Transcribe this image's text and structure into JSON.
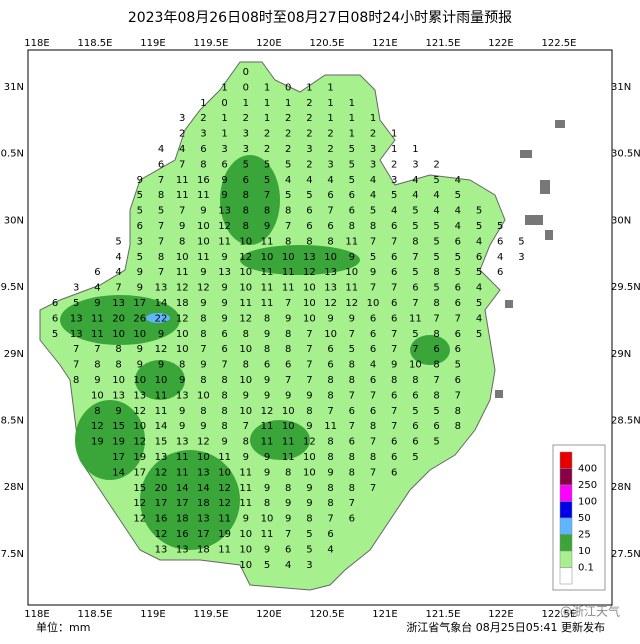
{
  "title": "2023年08月26日08时至08月27日08时24小时累计雨量预报",
  "lon_labels": [
    "118E",
    "118.5E",
    "119E",
    "119.5E",
    "120E",
    "120.5E",
    "121E",
    "121.5E",
    "122E",
    "122.5E"
  ],
  "lat_labels": [
    "31N",
    "30.5N",
    "30N",
    "29.5N",
    "29N",
    "28.5N",
    "28N",
    "27.5N"
  ],
  "grid": [
    [
      null,
      null,
      null,
      null,
      null,
      null,
      null,
      null,
      null,
      0
    ],
    [
      null,
      null,
      null,
      null,
      null,
      null,
      null,
      null,
      1,
      0,
      1,
      0,
      1,
      1
    ],
    [
      null,
      null,
      null,
      null,
      null,
      null,
      null,
      1,
      0,
      1,
      1,
      1,
      2,
      1,
      1
    ],
    [
      null,
      null,
      null,
      null,
      null,
      null,
      3,
      2,
      1,
      2,
      1,
      2,
      2,
      1,
      1,
      1
    ],
    [
      null,
      null,
      null,
      null,
      null,
      null,
      2,
      3,
      1,
      3,
      2,
      2,
      2,
      2,
      1,
      2,
      1
    ],
    [
      null,
      null,
      null,
      null,
      null,
      4,
      4,
      6,
      3,
      3,
      2,
      2,
      3,
      2,
      5,
      3,
      1,
      1
    ],
    [
      null,
      null,
      null,
      null,
      null,
      6,
      7,
      8,
      6,
      5,
      5,
      5,
      2,
      3,
      5,
      3,
      2,
      3,
      2
    ],
    [
      null,
      null,
      null,
      null,
      9,
      7,
      11,
      16,
      9,
      6,
      5,
      4,
      4,
      4,
      5,
      4,
      3,
      4,
      5,
      4
    ],
    [
      null,
      null,
      null,
      null,
      5,
      8,
      11,
      11,
      9,
      8,
      7,
      5,
      5,
      6,
      6,
      4,
      5,
      4,
      4,
      5
    ],
    [
      null,
      null,
      null,
      null,
      5,
      5,
      7,
      9,
      13,
      8,
      8,
      8,
      6,
      7,
      6,
      5,
      4,
      5,
      4,
      4,
      5
    ],
    [
      null,
      null,
      null,
      null,
      6,
      7,
      9,
      10,
      12,
      8,
      9,
      7,
      6,
      6,
      8,
      8,
      6,
      5,
      5,
      4,
      5,
      5
    ],
    [
      null,
      null,
      null,
      5,
      3,
      7,
      8,
      10,
      11,
      10,
      11,
      8,
      8,
      8,
      11,
      7,
      7,
      8,
      5,
      6,
      4,
      6,
      5
    ],
    [
      null,
      null,
      null,
      4,
      5,
      8,
      10,
      11,
      9,
      12,
      10,
      10,
      13,
      10,
      9,
      5,
      6,
      7,
      5,
      5,
      6,
      4,
      3
    ],
    [
      null,
      null,
      6,
      4,
      9,
      7,
      11,
      9,
      13,
      10,
      11,
      11,
      12,
      13,
      10,
      9,
      6,
      5,
      8,
      5,
      5,
      6
    ],
    [
      null,
      3,
      4,
      7,
      9,
      13,
      12,
      12,
      9,
      10,
      11,
      11,
      10,
      13,
      11,
      7,
      7,
      6,
      5,
      6,
      4
    ],
    [
      6,
      5,
      9,
      13,
      17,
      14,
      18,
      9,
      9,
      11,
      11,
      7,
      10,
      12,
      12,
      10,
      6,
      7,
      8,
      6,
      5
    ],
    [
      6,
      13,
      11,
      20,
      26,
      22,
      12,
      8,
      9,
      12,
      8,
      9,
      10,
      9,
      9,
      6,
      6,
      11,
      7,
      7,
      4
    ],
    [
      5,
      13,
      11,
      10,
      10,
      9,
      10,
      8,
      6,
      8,
      9,
      8,
      7,
      10,
      7,
      6,
      7,
      5,
      8,
      6,
      5
    ],
    [
      null,
      7,
      7,
      8,
      9,
      12,
      10,
      7,
      6,
      10,
      8,
      8,
      7,
      6,
      5,
      6,
      7,
      7,
      6,
      6
    ],
    [
      null,
      7,
      8,
      8,
      9,
      9,
      8,
      9,
      7,
      8,
      6,
      6,
      7,
      6,
      8,
      4,
      9,
      10,
      8,
      5
    ],
    [
      null,
      8,
      9,
      10,
      10,
      10,
      9,
      8,
      8,
      10,
      9,
      7,
      7,
      8,
      8,
      6,
      8,
      8,
      7,
      6
    ],
    [
      null,
      null,
      10,
      13,
      13,
      11,
      13,
      10,
      8,
      9,
      9,
      9,
      9,
      8,
      7,
      7,
      6,
      6,
      8,
      7
    ],
    [
      null,
      null,
      8,
      9,
      12,
      11,
      9,
      8,
      8,
      10,
      12,
      10,
      8,
      7,
      6,
      6,
      7,
      5,
      5,
      8
    ],
    [
      null,
      null,
      12,
      15,
      10,
      14,
      9,
      9,
      8,
      7,
      11,
      10,
      9,
      11,
      7,
      8,
      7,
      6,
      6,
      8
    ],
    [
      null,
      null,
      19,
      19,
      12,
      15,
      13,
      12,
      9,
      8,
      11,
      11,
      12,
      8,
      6,
      7,
      6,
      6,
      5
    ],
    [
      null,
      null,
      null,
      17,
      19,
      13,
      11,
      10,
      11,
      9,
      9,
      11,
      10,
      8,
      8,
      8,
      6,
      5
    ],
    [
      null,
      null,
      null,
      14,
      17,
      12,
      11,
      13,
      10,
      11,
      9,
      8,
      10,
      9,
      8,
      7,
      6
    ],
    [
      null,
      null,
      null,
      null,
      15,
      20,
      14,
      14,
      12,
      11,
      9,
      8,
      9,
      8,
      8,
      7
    ],
    [
      null,
      null,
      null,
      null,
      12,
      17,
      17,
      18,
      12,
      11,
      8,
      9,
      9,
      8,
      7
    ],
    [
      null,
      null,
      null,
      null,
      12,
      16,
      18,
      13,
      11,
      9,
      10,
      9,
      8,
      7,
      6
    ],
    [
      null,
      null,
      null,
      null,
      null,
      12,
      16,
      17,
      19,
      10,
      11,
      7,
      5,
      6
    ],
    [
      null,
      null,
      null,
      null,
      null,
      13,
      13,
      18,
      11,
      10,
      9,
      6,
      5,
      4
    ],
    [
      null,
      null,
      null,
      null,
      null,
      null,
      null,
      null,
      null,
      10,
      5,
      4,
      3
    ]
  ],
  "legend": {
    "labels": [
      "400",
      "250",
      "100",
      "50",
      "25",
      "10",
      "0.1"
    ],
    "colors": [
      "#e60000",
      "#8a0046",
      "#ff00ff",
      "#0000e6",
      "#5fb6ff",
      "#3aa63a",
      "#a7f08e",
      "#ffffff"
    ]
  },
  "unit": "单位：mm",
  "source": "浙江省气象台 08月25日05:41 更新发布",
  "watermark": "@浙江天气"
}
